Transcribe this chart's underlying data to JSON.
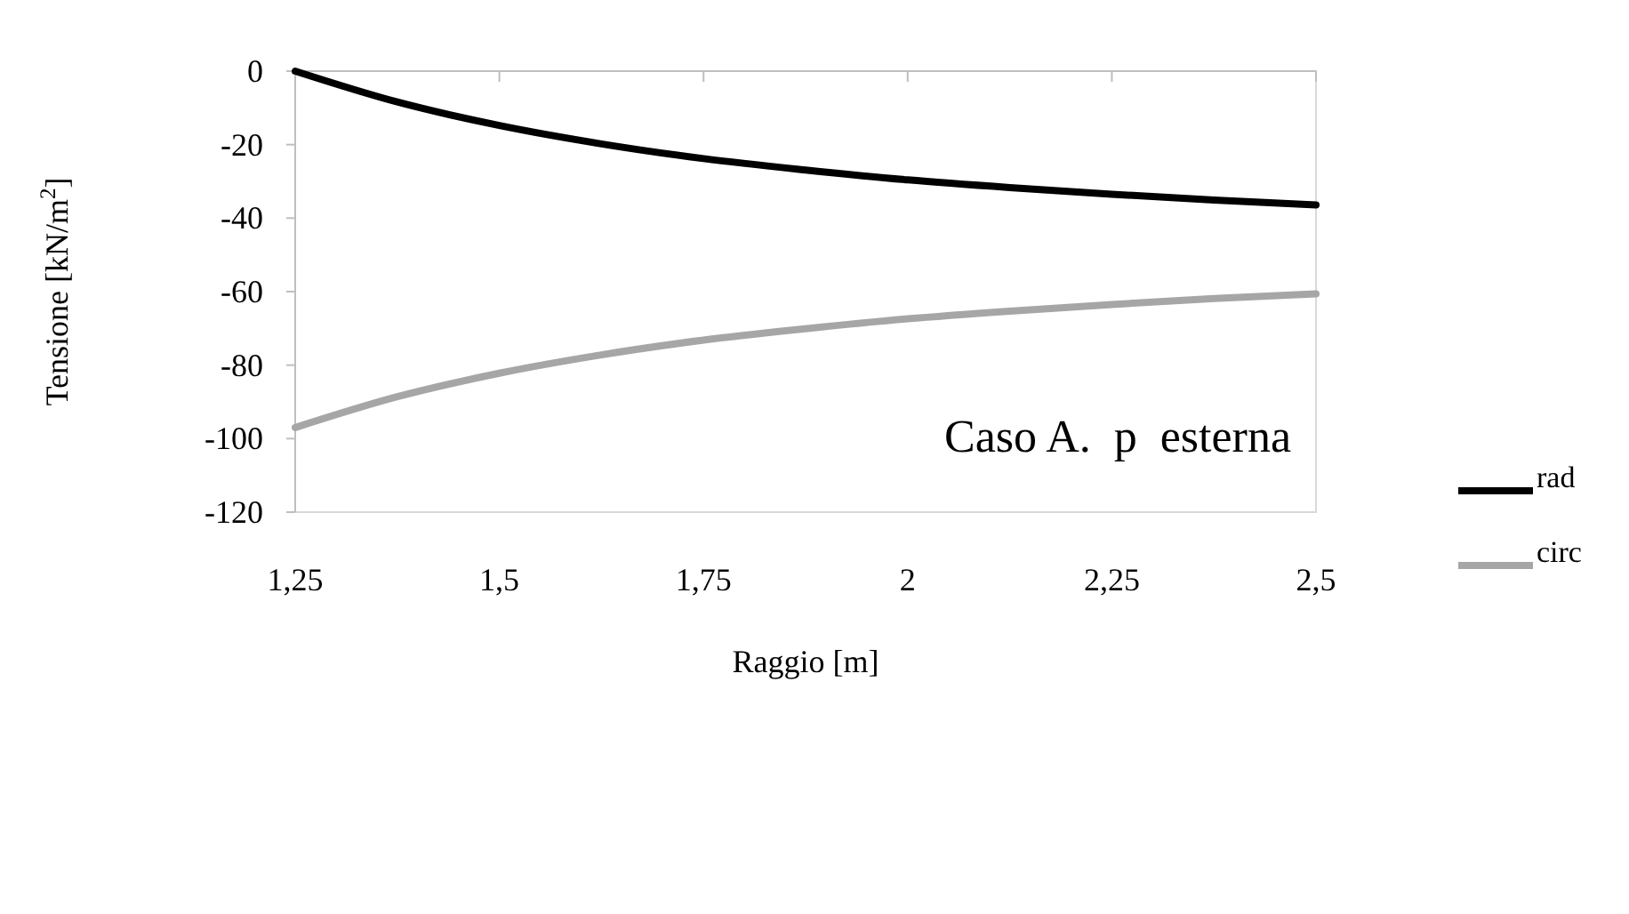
{
  "chart_data": {
    "type": "line",
    "xlabel": "Raggio [m]",
    "ylabel": "Tensione [kN/m$^{2}$]",
    "x": [
      1.25,
      1.375,
      1.5,
      1.625,
      1.75,
      1.875,
      2,
      2.125,
      2.25,
      2.375,
      2.5
    ],
    "series": [
      {
        "name": "rad",
        "color": "#000000",
        "values": [
          0,
          -8.4,
          -14.8,
          -19.8,
          -23.8,
          -26.9,
          -29.6,
          -31.7,
          -33.5,
          -35.1,
          -36.4
        ]
      },
      {
        "name": "circ",
        "color": "#a6a6a6",
        "values": [
          -97,
          -88.6,
          -82.2,
          -77.2,
          -73.2,
          -70.1,
          -67.4,
          -65.3,
          -63.5,
          -61.9,
          -60.6
        ]
      }
    ],
    "xlim": [
      1.25,
      2.5
    ],
    "xticks": [
      {
        "value": 1.25,
        "label": "1,25"
      },
      {
        "value": 1.5,
        "label": "1,5"
      },
      {
        "value": 1.75,
        "label": "1,75"
      },
      2,
      {
        "value": 2.25,
        "label": "2,25"
      },
      {
        "value": 2.5,
        "label": "2,5"
      }
    ],
    "ylim": [
      -120,
      0
    ],
    "yticks": [
      -120,
      -100,
      -80,
      -60,
      -40,
      -20,
      0
    ],
    "grid": false,
    "legend": "right",
    "marker": "none",
    "line_style": "solid",
    "annotations": [
      "Caso A.  p  esterna"
    ]
  }
}
